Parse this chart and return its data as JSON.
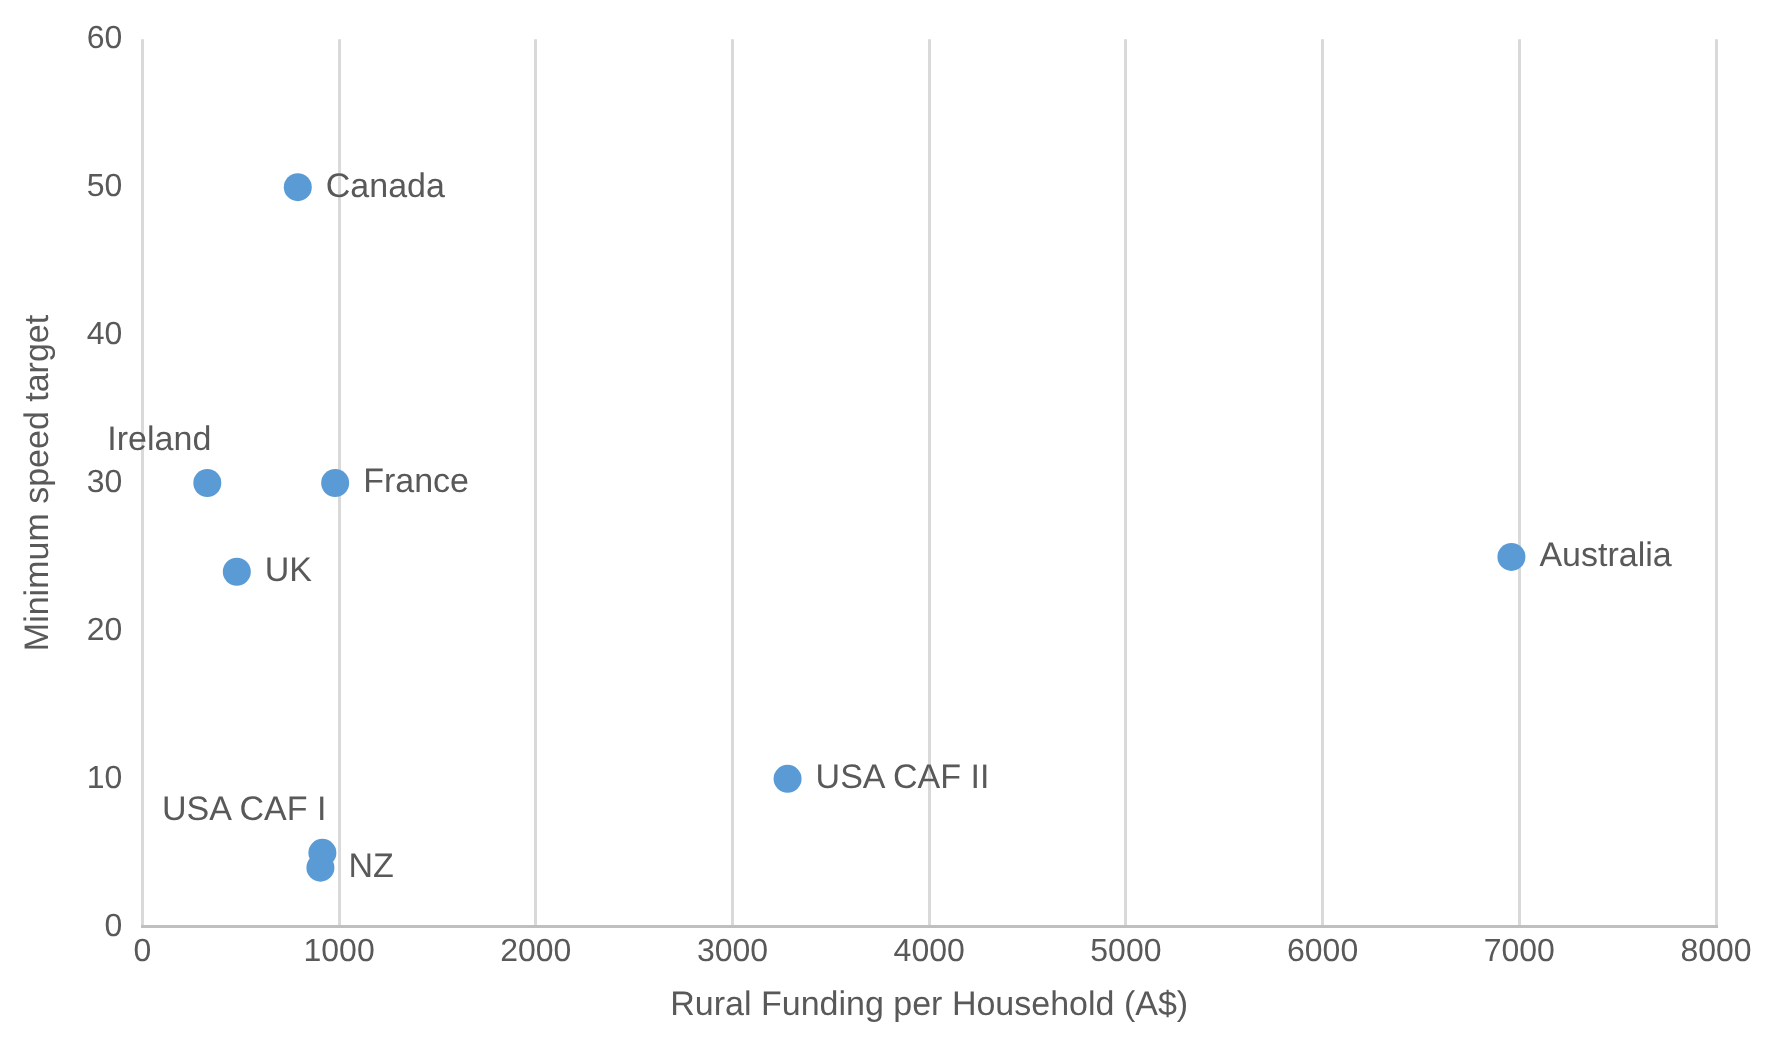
{
  "chart_data": {
    "type": "scatter",
    "xlabel": "Rural Funding per Household (A$)",
    "ylabel": "Minimum speed target",
    "x": [
      790,
      330,
      980,
      480,
      915,
      905,
      3280,
      6960
    ],
    "series": [
      {
        "color": "#5b9bd5",
        "values": [
          50,
          30,
          30,
          24,
          5,
          4,
          10,
          25
        ]
      }
    ],
    "annotations": [
      {
        "text": "Canada",
        "x": 790,
        "y": 50
      },
      {
        "text": "Ireland",
        "x": 330,
        "y": 30
      },
      {
        "text": "France",
        "x": 980,
        "y": 30
      },
      {
        "text": "UK",
        "x": 480,
        "y": 24
      },
      {
        "text": "USA CAF I",
        "x": 915,
        "y": 5
      },
      {
        "text": "NZ",
        "x": 905,
        "y": 4
      },
      {
        "text": "USA CAF II",
        "x": 3280,
        "y": 10
      },
      {
        "text": "Australia",
        "x": 6960,
        "y": 25
      }
    ],
    "xlim": [
      0,
      8000
    ],
    "xticks": [
      0,
      1000,
      2000,
      3000,
      4000,
      5000,
      6000,
      7000,
      8000
    ],
    "ylim": [
      0,
      60
    ],
    "yticks": [
      0,
      10,
      20,
      30,
      40,
      50,
      60
    ],
    "grid": "x",
    "legend": false,
    "marker": "circle"
  }
}
